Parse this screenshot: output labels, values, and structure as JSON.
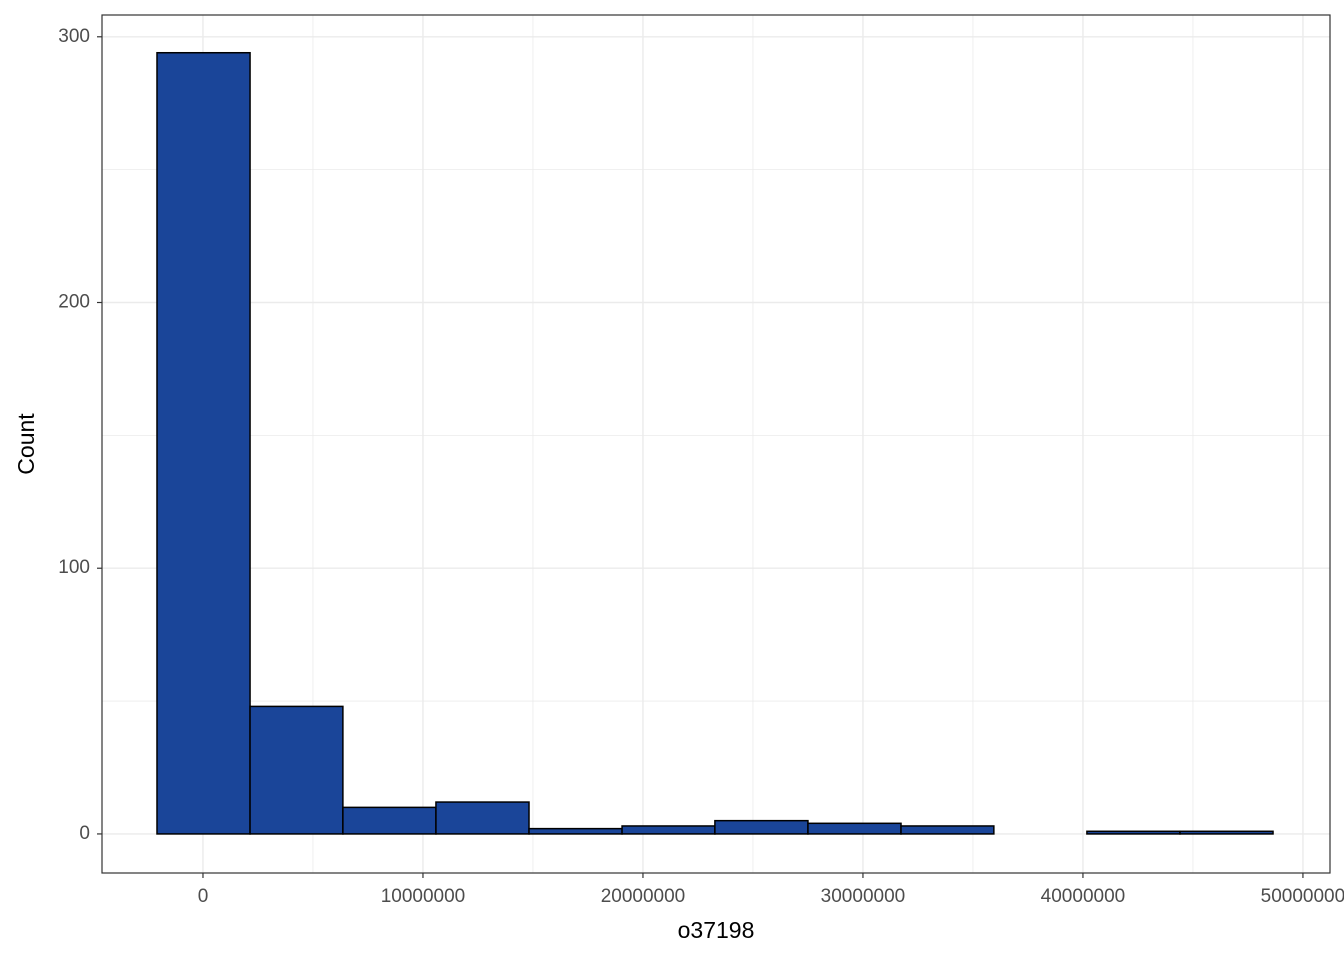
{
  "chart_data": {
    "type": "histogram",
    "x_label": "o37198",
    "y_label": "Count",
    "bins": [
      -2090000,
      2140000,
      6360000,
      10590000,
      14820000,
      19050000,
      23270000,
      27500000,
      31730000,
      35950000,
      40180000,
      44410000,
      48640000
    ],
    "counts": [
      294,
      48,
      10,
      12,
      2,
      3,
      5,
      4,
      3,
      0,
      1,
      1
    ],
    "color": "#1a4599",
    "xlim": [
      -4590000,
      51230000
    ],
    "xticks": [
      0,
      10000000,
      20000000,
      30000000,
      40000000,
      50000000
    ],
    "ylim": [
      -14.7,
      308.2
    ],
    "yticks": [
      0,
      100,
      200,
      300
    ],
    "grid": true
  }
}
